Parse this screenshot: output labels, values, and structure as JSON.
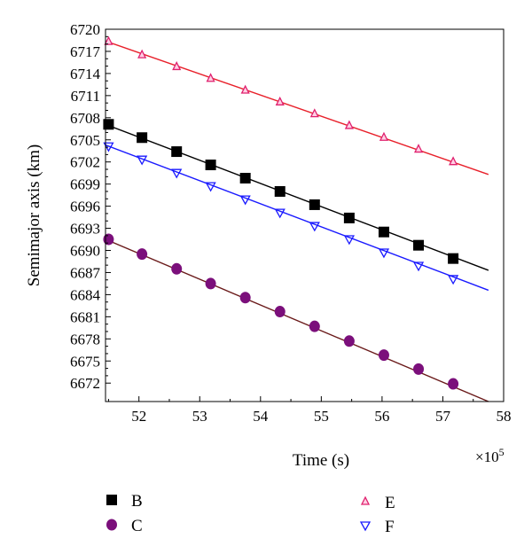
{
  "chart_data": {
    "type": "scatter",
    "xlabel": "Time (s)",
    "ylabel": "Semimajor axis (km)",
    "x_multiplier": "×10",
    "x_multiplier_exp": "5",
    "xlim": [
      51.45,
      58
    ],
    "ylim": [
      6669.5,
      6720
    ],
    "x_ticks": [
      52,
      53,
      54,
      55,
      56,
      57,
      58
    ],
    "y_ticks": [
      6672,
      6675,
      6678,
      6681,
      6684,
      6687,
      6690,
      6693,
      6696,
      6699,
      6702,
      6705,
      6708,
      6711,
      6714,
      6717,
      6720
    ],
    "grid": false,
    "legend_position": "bottom",
    "series": [
      {
        "name": "B",
        "marker": "square",
        "color": "#000000",
        "line_color": "#000000",
        "x": [
          51.5,
          52.05,
          52.62,
          53.18,
          53.75,
          54.32,
          54.89,
          55.46,
          56.03,
          56.6,
          57.17
        ],
        "y": [
          6707.1,
          6705.3,
          6703.4,
          6701.6,
          6699.8,
          6698.0,
          6696.2,
          6694.4,
          6692.5,
          6690.7,
          6688.9
        ],
        "fit": [
          [
            51.45,
            6707.1
          ],
          [
            57.75,
            6687.3
          ]
        ]
      },
      {
        "name": "C",
        "marker": "circle",
        "color": "#7b0f7b",
        "line_color": "#6a1a1a",
        "x": [
          51.5,
          52.05,
          52.62,
          53.18,
          53.75,
          54.32,
          54.89,
          55.46,
          56.03,
          56.6,
          57.17
        ],
        "y": [
          6691.5,
          6689.5,
          6687.5,
          6685.5,
          6683.6,
          6681.7,
          6679.7,
          6677.7,
          6675.8,
          6673.9,
          6671.9
        ],
        "fit": [
          [
            51.45,
            6691.5
          ],
          [
            57.75,
            6669.5
          ]
        ]
      },
      {
        "name": "E",
        "marker": "triangle-up",
        "color": "#e0206e",
        "line_color": "#e8202a",
        "x": [
          51.5,
          52.05,
          52.62,
          53.18,
          53.75,
          54.32,
          54.89,
          55.46,
          56.03,
          56.6,
          57.17
        ],
        "y": [
          6718.3,
          6716.5,
          6714.9,
          6713.3,
          6711.7,
          6710.1,
          6708.5,
          6706.9,
          6705.3,
          6703.7,
          6702.0
        ],
        "fit": [
          [
            51.45,
            6718.4
          ],
          [
            57.75,
            6700.3
          ]
        ]
      },
      {
        "name": "F",
        "marker": "triangle-down",
        "color": "#1a1aff",
        "line_color": "#1a1aff",
        "x": [
          51.5,
          52.05,
          52.62,
          53.18,
          53.75,
          54.32,
          54.89,
          55.46,
          56.03,
          56.6,
          57.17
        ],
        "y": [
          6704.1,
          6702.3,
          6700.5,
          6698.7,
          6696.9,
          6695.1,
          6693.3,
          6691.5,
          6689.7,
          6687.9,
          6686.1
        ],
        "fit": [
          [
            51.45,
            6704.3
          ],
          [
            57.75,
            6684.6
          ]
        ]
      }
    ]
  }
}
